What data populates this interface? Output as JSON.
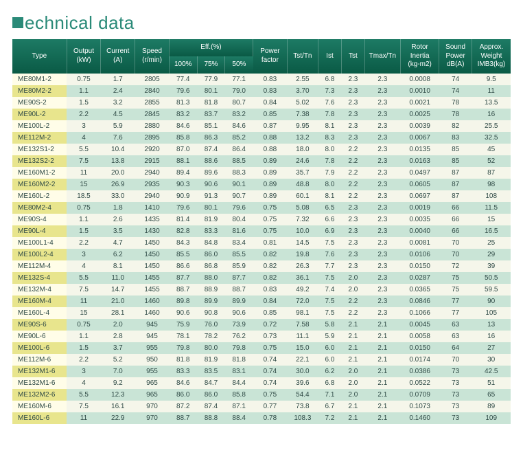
{
  "page": {
    "title_rest": "echnical data"
  },
  "table": {
    "headers": {
      "type": "Type",
      "output": "Output\n(kW)",
      "current": "Current\n(A)",
      "speed": "Speed\n(r/min)",
      "eff": "Eff.(%)",
      "eff_100": "100%",
      "eff_75": "75%",
      "eff_50": "50%",
      "pf": "Power\nfactor",
      "tst_tn": "Tst/Tn",
      "ist": "Ist",
      "tst": "Tst",
      "tmax_tn": "Tmax/Tn",
      "rotor_inertia": "Rotor\nInertia\n(kg-m2)",
      "sound_power": "Sound\nPower\ndB(A)",
      "approx_weight": "Approx.\nWeight\nIMB3(kg)"
    },
    "rows": [
      {
        "type": "ME80M1-2",
        "output": "0.75",
        "current": "1.7",
        "speed": "2805",
        "eff100": "77.4",
        "eff75": "77.9",
        "eff50": "77.1",
        "pf": "0.83",
        "tsttn": "2.55",
        "ist": "6.8",
        "tst": "2.3",
        "tmax": "2.3",
        "ri": "0.0008",
        "sp": "74",
        "wt": "9.5"
      },
      {
        "type": "ME80M2-2",
        "output": "1.1",
        "current": "2.4",
        "speed": "2840",
        "eff100": "79.6",
        "eff75": "80.1",
        "eff50": "79.0",
        "pf": "0.83",
        "tsttn": "3.70",
        "ist": "7.3",
        "tst": "2.3",
        "tmax": "2.3",
        "ri": "0.0010",
        "sp": "74",
        "wt": "11"
      },
      {
        "type": "ME90S-2",
        "output": "1.5",
        "current": "3.2",
        "speed": "2855",
        "eff100": "81.3",
        "eff75": "81.8",
        "eff50": "80.7",
        "pf": "0.84",
        "tsttn": "5.02",
        "ist": "7.6",
        "tst": "2.3",
        "tmax": "2.3",
        "ri": "0.0021",
        "sp": "78",
        "wt": "13.5"
      },
      {
        "type": "ME90L-2",
        "output": "2.2",
        "current": "4.5",
        "speed": "2845",
        "eff100": "83.2",
        "eff75": "83.7",
        "eff50": "83.2",
        "pf": "0.85",
        "tsttn": "7.38",
        "ist": "7.8",
        "tst": "2.3",
        "tmax": "2.3",
        "ri": "0.0025",
        "sp": "78",
        "wt": "16"
      },
      {
        "type": "ME100L-2",
        "output": "3",
        "current": "5.9",
        "speed": "2880",
        "eff100": "84.6",
        "eff75": "85.1",
        "eff50": "84.6",
        "pf": "0.87",
        "tsttn": "9.95",
        "ist": "8.1",
        "tst": "2.3",
        "tmax": "2.3",
        "ri": "0.0039",
        "sp": "82",
        "wt": "25.5"
      },
      {
        "type": "ME112M-2",
        "output": "4",
        "current": "7.6",
        "speed": "2895",
        "eff100": "85.8",
        "eff75": "86.3",
        "eff50": "85.2",
        "pf": "0.88",
        "tsttn": "13.2",
        "ist": "8.3",
        "tst": "2.3",
        "tmax": "2.3",
        "ri": "0.0067",
        "sp": "83",
        "wt": "32.5"
      },
      {
        "type": "ME132S1-2",
        "output": "5.5",
        "current": "10.4",
        "speed": "2920",
        "eff100": "87.0",
        "eff75": "87.4",
        "eff50": "86.4",
        "pf": "0.88",
        "tsttn": "18.0",
        "ist": "8.0",
        "tst": "2.2",
        "tmax": "2.3",
        "ri": "0.0135",
        "sp": "85",
        "wt": "45"
      },
      {
        "type": "ME132S2-2",
        "output": "7.5",
        "current": "13.8",
        "speed": "2915",
        "eff100": "88.1",
        "eff75": "88.6",
        "eff50": "88.5",
        "pf": "0.89",
        "tsttn": "24.6",
        "ist": "7.8",
        "tst": "2.2",
        "tmax": "2.3",
        "ri": "0.0163",
        "sp": "85",
        "wt": "52"
      },
      {
        "type": "ME160M1-2",
        "output": "11",
        "current": "20.0",
        "speed": "2940",
        "eff100": "89.4",
        "eff75": "89.6",
        "eff50": "88.3",
        "pf": "0.89",
        "tsttn": "35.7",
        "ist": "7.9",
        "tst": "2.2",
        "tmax": "2.3",
        "ri": "0.0497",
        "sp": "87",
        "wt": "87"
      },
      {
        "type": "ME160M2-2",
        "output": "15",
        "current": "26.9",
        "speed": "2935",
        "eff100": "90.3",
        "eff75": "90.6",
        "eff50": "90.1",
        "pf": "0.89",
        "tsttn": "48.8",
        "ist": "8.0",
        "tst": "2.2",
        "tmax": "2.3",
        "ri": "0.0605",
        "sp": "87",
        "wt": "98"
      },
      {
        "type": "ME160L-2",
        "output": "18.5",
        "current": "33.0",
        "speed": "2940",
        "eff100": "90.9",
        "eff75": "91.3",
        "eff50": "90.7",
        "pf": "0.89",
        "tsttn": "60.1",
        "ist": "8.1",
        "tst": "2.2",
        "tmax": "2.3",
        "ri": "0.0697",
        "sp": "87",
        "wt": "108"
      },
      {
        "type": "ME80M2-4",
        "output": "0.75",
        "current": "1.8",
        "speed": "1410",
        "eff100": "79.6",
        "eff75": "80.1",
        "eff50": "79.6",
        "pf": "0.75",
        "tsttn": "5.08",
        "ist": "6.5",
        "tst": "2.3",
        "tmax": "2.3",
        "ri": "0.0019",
        "sp": "66",
        "wt": "11.5"
      },
      {
        "type": "ME90S-4",
        "output": "1.1",
        "current": "2.6",
        "speed": "1435",
        "eff100": "81.4",
        "eff75": "81.9",
        "eff50": "80.4",
        "pf": "0.75",
        "tsttn": "7.32",
        "ist": "6.6",
        "tst": "2.3",
        "tmax": "2.3",
        "ri": "0.0035",
        "sp": "66",
        "wt": "15"
      },
      {
        "type": "ME90L-4",
        "output": "1.5",
        "current": "3.5",
        "speed": "1430",
        "eff100": "82.8",
        "eff75": "83.3",
        "eff50": "81.6",
        "pf": "0.75",
        "tsttn": "10.0",
        "ist": "6.9",
        "tst": "2.3",
        "tmax": "2.3",
        "ri": "0.0040",
        "sp": "66",
        "wt": "16.5"
      },
      {
        "type": "ME100L1-4",
        "output": "2.2",
        "current": "4.7",
        "speed": "1450",
        "eff100": "84.3",
        "eff75": "84.8",
        "eff50": "83.4",
        "pf": "0.81",
        "tsttn": "14.5",
        "ist": "7.5",
        "tst": "2.3",
        "tmax": "2.3",
        "ri": "0.0081",
        "sp": "70",
        "wt": "25"
      },
      {
        "type": "ME100L2-4",
        "output": "3",
        "current": "6.2",
        "speed": "1450",
        "eff100": "85.5",
        "eff75": "86.0",
        "eff50": "85.5",
        "pf": "0.82",
        "tsttn": "19.8",
        "ist": "7.6",
        "tst": "2.3",
        "tmax": "2.3",
        "ri": "0.0106",
        "sp": "70",
        "wt": "29"
      },
      {
        "type": "ME112M-4",
        "output": "4",
        "current": "8.1",
        "speed": "1450",
        "eff100": "86.6",
        "eff75": "86.8",
        "eff50": "85.9",
        "pf": "0.82",
        "tsttn": "26.3",
        "ist": "7.7",
        "tst": "2.3",
        "tmax": "2.3",
        "ri": "0.0150",
        "sp": "72",
        "wt": "39"
      },
      {
        "type": "ME132S-4",
        "output": "5.5",
        "current": "11.0",
        "speed": "1455",
        "eff100": "87.7",
        "eff75": "88.0",
        "eff50": "87.7",
        "pf": "0.82",
        "tsttn": "36.1",
        "ist": "7.5",
        "tst": "2.0",
        "tmax": "2.3",
        "ri": "0.0287",
        "sp": "75",
        "wt": "50.5"
      },
      {
        "type": "ME132M-4",
        "output": "7.5",
        "current": "14.7",
        "speed": "1455",
        "eff100": "88.7",
        "eff75": "88.9",
        "eff50": "88.7",
        "pf": "0.83",
        "tsttn": "49.2",
        "ist": "7.4",
        "tst": "2.0",
        "tmax": "2.3",
        "ri": "0.0365",
        "sp": "75",
        "wt": "59.5"
      },
      {
        "type": "ME160M-4",
        "output": "11",
        "current": "21.0",
        "speed": "1460",
        "eff100": "89.8",
        "eff75": "89.9",
        "eff50": "89.9",
        "pf": "0.84",
        "tsttn": "72.0",
        "ist": "7.5",
        "tst": "2.2",
        "tmax": "2.3",
        "ri": "0.0846",
        "sp": "77",
        "wt": "90"
      },
      {
        "type": "ME160L-4",
        "output": "15",
        "current": "28.1",
        "speed": "1460",
        "eff100": "90.6",
        "eff75": "90.8",
        "eff50": "90.6",
        "pf": "0.85",
        "tsttn": "98.1",
        "ist": "7.5",
        "tst": "2.2",
        "tmax": "2.3",
        "ri": "0.1066",
        "sp": "77",
        "wt": "105"
      },
      {
        "type": "ME90S-6",
        "output": "0.75",
        "current": "2.0",
        "speed": "945",
        "eff100": "75.9",
        "eff75": "76.0",
        "eff50": "73.9",
        "pf": "0.72",
        "tsttn": "7.58",
        "ist": "5.8",
        "tst": "2.1",
        "tmax": "2.1",
        "ri": "0.0045",
        "sp": "63",
        "wt": "13"
      },
      {
        "type": "ME90L-6",
        "output": "1.1",
        "current": "2.8",
        "speed": "945",
        "eff100": "78.1",
        "eff75": "78.2",
        "eff50": "76.2",
        "pf": "0.73",
        "tsttn": "11.1",
        "ist": "5.9",
        "tst": "2.1",
        "tmax": "2.1",
        "ri": "0.0058",
        "sp": "63",
        "wt": "16"
      },
      {
        "type": "ME100L-6",
        "output": "1.5",
        "current": "3.7",
        "speed": "955",
        "eff100": "79.8",
        "eff75": "80.0",
        "eff50": "79.8",
        "pf": "0.75",
        "tsttn": "15.0",
        "ist": "6.0",
        "tst": "2.1",
        "tmax": "2.1",
        "ri": "0.0150",
        "sp": "64",
        "wt": "27"
      },
      {
        "type": "ME112M-6",
        "output": "2.2",
        "current": "5.2",
        "speed": "950",
        "eff100": "81.8",
        "eff75": "81.9",
        "eff50": "81.8",
        "pf": "0.74",
        "tsttn": "22.1",
        "ist": "6.0",
        "tst": "2.1",
        "tmax": "2.1",
        "ri": "0.0174",
        "sp": "70",
        "wt": "30"
      },
      {
        "type": "ME132M1-6",
        "output": "3",
        "current": "7.0",
        "speed": "955",
        "eff100": "83.3",
        "eff75": "83.5",
        "eff50": "83.1",
        "pf": "0.74",
        "tsttn": "30.0",
        "ist": "6.2",
        "tst": "2.0",
        "tmax": "2.1",
        "ri": "0.0386",
        "sp": "73",
        "wt": "42.5"
      },
      {
        "type": "ME132M1-6",
        "output": "4",
        "current": "9.2",
        "speed": "965",
        "eff100": "84.6",
        "eff75": "84.7",
        "eff50": "84.4",
        "pf": "0.74",
        "tsttn": "39.6",
        "ist": "6.8",
        "tst": "2.0",
        "tmax": "2.1",
        "ri": "0.0522",
        "sp": "73",
        "wt": "51"
      },
      {
        "type": "ME132M2-6",
        "output": "5.5",
        "current": "12.3",
        "speed": "965",
        "eff100": "86.0",
        "eff75": "86.0",
        "eff50": "85.8",
        "pf": "0.75",
        "tsttn": "54.4",
        "ist": "7.1",
        "tst": "2.0",
        "tmax": "2.1",
        "ri": "0.0709",
        "sp": "73",
        "wt": "65"
      },
      {
        "type": "ME160M-6",
        "output": "7.5",
        "current": "16.1",
        "speed": "970",
        "eff100": "87.2",
        "eff75": "87.4",
        "eff50": "87.1",
        "pf": "0.77",
        "tsttn": "73.8",
        "ist": "6.7",
        "tst": "2.1",
        "tmax": "2.1",
        "ri": "0.1073",
        "sp": "73",
        "wt": "89"
      },
      {
        "type": "ME160L-6",
        "output": "11",
        "current": "22.9",
        "speed": "970",
        "eff100": "88.7",
        "eff75": "88.8",
        "eff50": "88.4",
        "pf": "0.78",
        "tsttn": "108.3",
        "ist": "7.2",
        "tst": "2.1",
        "tmax": "2.1",
        "ri": "0.1460",
        "sp": "73",
        "wt": "109"
      }
    ]
  }
}
